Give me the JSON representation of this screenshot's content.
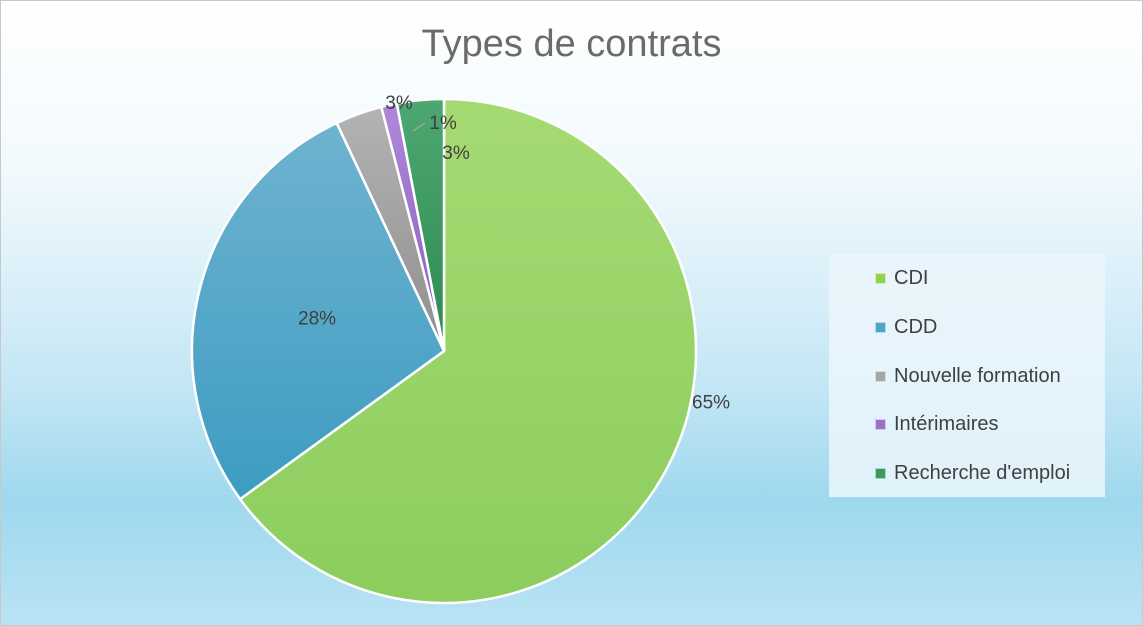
{
  "chart_data": {
    "type": "pie",
    "title": "Types de contrats",
    "categories": [
      "CDI",
      "CDD",
      "Nouvelle formation",
      "Intérimaires",
      "Recherche d'emploi"
    ],
    "values": [
      65,
      28,
      3,
      1,
      3
    ],
    "data_labels": [
      "65%",
      "28%",
      "3%",
      "1%",
      "3%"
    ],
    "colors": [
      "#92d050",
      "#4aa5c8",
      "#a6a6a6",
      "#9b6fcc",
      "#3a9a60"
    ],
    "legend_position": "right",
    "start_angle": "12 o'clock",
    "direction": "clockwise"
  }
}
